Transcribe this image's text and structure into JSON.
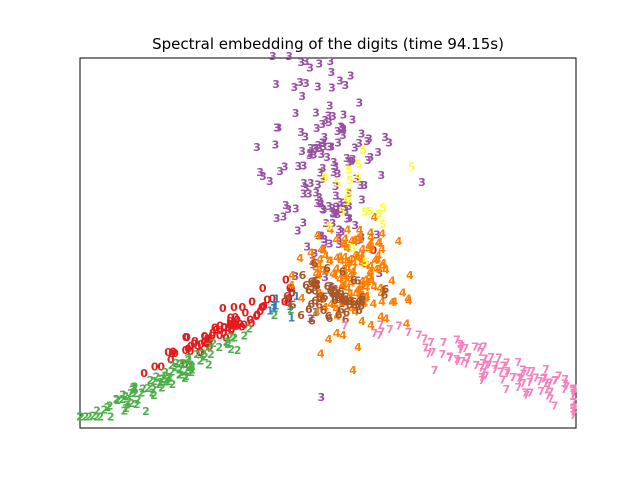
{
  "figure": {
    "title": "Spectral embedding of the digits (time 94.15s)"
  },
  "chart_data": {
    "type": "scatter",
    "title": "Spectral embedding of the digits (time 94.15s)",
    "xlabel": "",
    "ylabel": "",
    "xlim": [
      0,
      1
    ],
    "ylim": [
      0,
      1
    ],
    "grid": false,
    "legend": "none",
    "ticks_visible": false,
    "marker": "digit text label",
    "colors": {
      "0": "#e41a1c",
      "1": "#377eb8",
      "2": "#4daf4a",
      "3": "#984ea3",
      "4": "#ff7f00",
      "5": "#ffff33",
      "6": "#a65628",
      "7": "#f781bf"
    },
    "clusters": [
      {
        "label": "0",
        "center": [
          0.28,
          0.25
        ],
        "spread": [
          0.08,
          0.05
        ],
        "count": 80
      },
      {
        "label": "1",
        "center": [
          0.42,
          0.32
        ],
        "spread": [
          0.03,
          0.02
        ],
        "count": 10
      },
      {
        "label": "2",
        "center": [
          0.18,
          0.13
        ],
        "spread": [
          0.1,
          0.04
        ],
        "count": 100
      },
      {
        "label": "3",
        "center": [
          0.5,
          0.68
        ],
        "spread": [
          0.06,
          0.15
        ],
        "count": 160
      },
      {
        "label": "4",
        "center": [
          0.55,
          0.4
        ],
        "spread": [
          0.05,
          0.08
        ],
        "count": 150
      },
      {
        "label": "5",
        "center": [
          0.56,
          0.62
        ],
        "spread": [
          0.04,
          0.08
        ],
        "count": 20
      },
      {
        "label": "6",
        "center": [
          0.51,
          0.35
        ],
        "spread": [
          0.04,
          0.03
        ],
        "count": 60
      },
      {
        "label": "7",
        "center": [
          0.85,
          0.15
        ],
        "spread": [
          0.13,
          0.06
        ],
        "count": 110
      }
    ]
  }
}
